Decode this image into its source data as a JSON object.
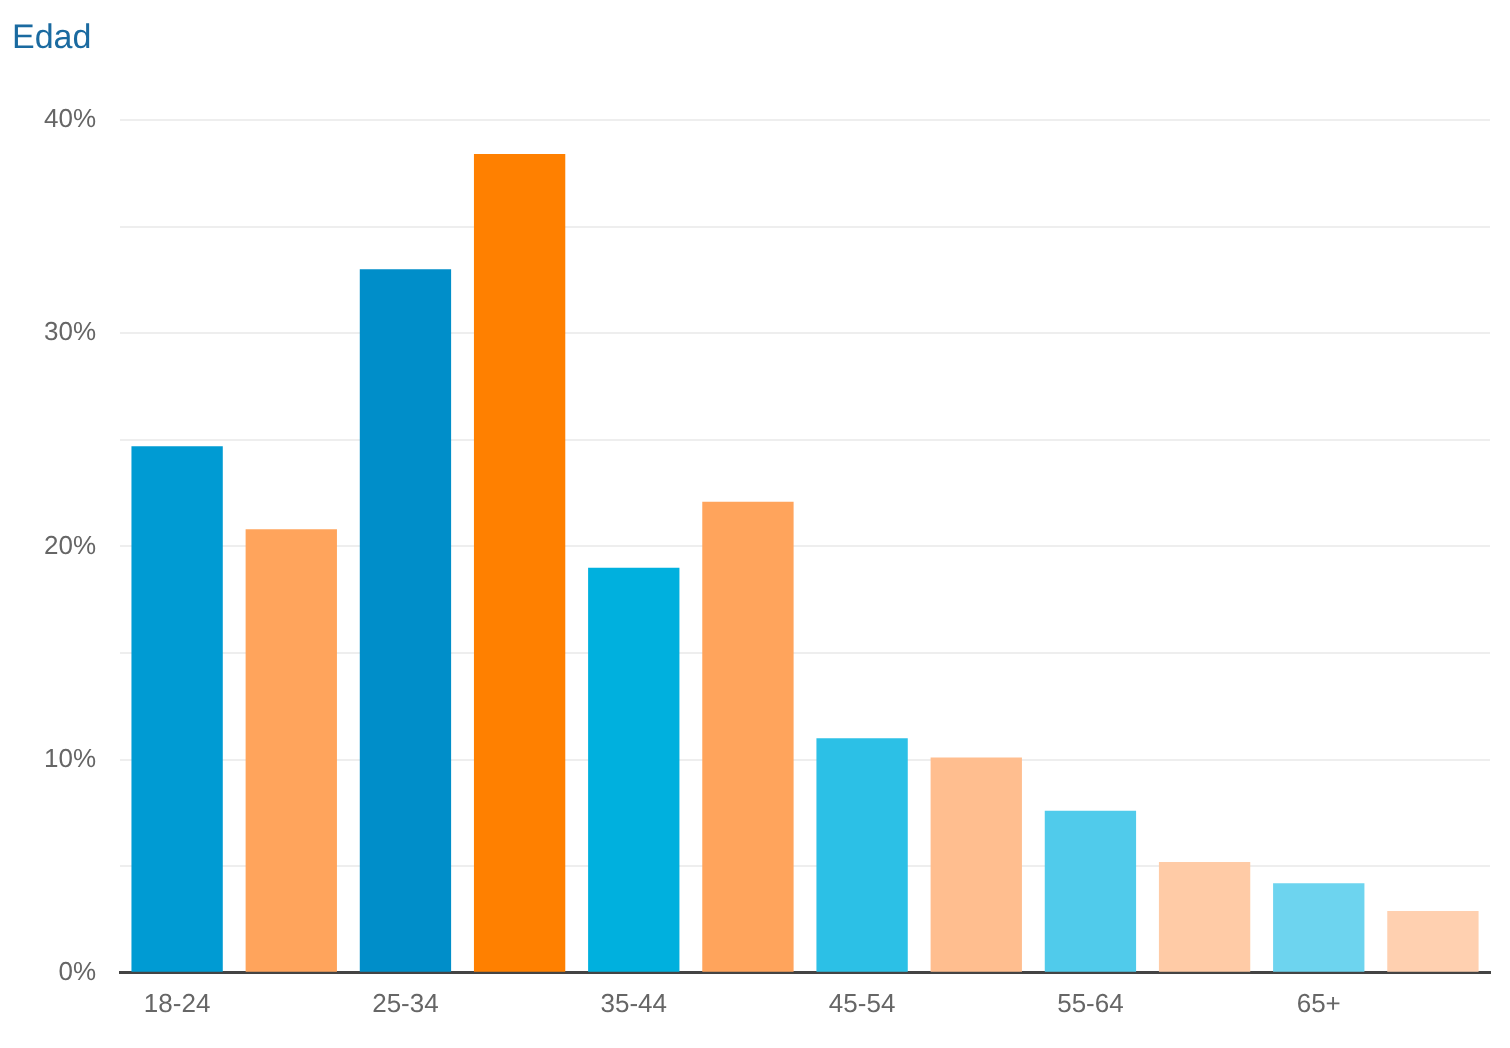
{
  "chart_data": {
    "type": "bar",
    "title": "Edad",
    "categories": [
      "18-24",
      null,
      "25-34",
      null,
      "35-44",
      null,
      "45-54",
      null,
      "55-64",
      null,
      "65+",
      null
    ],
    "values": [
      24.7,
      20.8,
      33.0,
      38.4,
      19.0,
      22.1,
      11.0,
      10.1,
      7.6,
      5.2,
      4.2,
      2.9
    ],
    "colors": [
      "#009bd3",
      "#ffa45c",
      "#008ec9",
      "#ff8000",
      "#00b0de",
      "#ffa45c",
      "#2cc0e6",
      "#ffbe8f",
      "#50cbeb",
      "#ffcba6",
      "#6dd4ef",
      "#ffd0b0"
    ],
    "ylim": [
      0,
      40
    ],
    "yticks": [
      {
        "value": 0,
        "label": "0%"
      },
      {
        "value": 5,
        "label": null
      },
      {
        "value": 10,
        "label": "10%"
      },
      {
        "value": 15,
        "label": null
      },
      {
        "value": 20,
        "label": "20%"
      },
      {
        "value": 25,
        "label": null
      },
      {
        "value": 30,
        "label": "30%"
      },
      {
        "value": 35,
        "label": null
      },
      {
        "value": 40,
        "label": "40%"
      }
    ],
    "grid": "y",
    "legend": false
  }
}
